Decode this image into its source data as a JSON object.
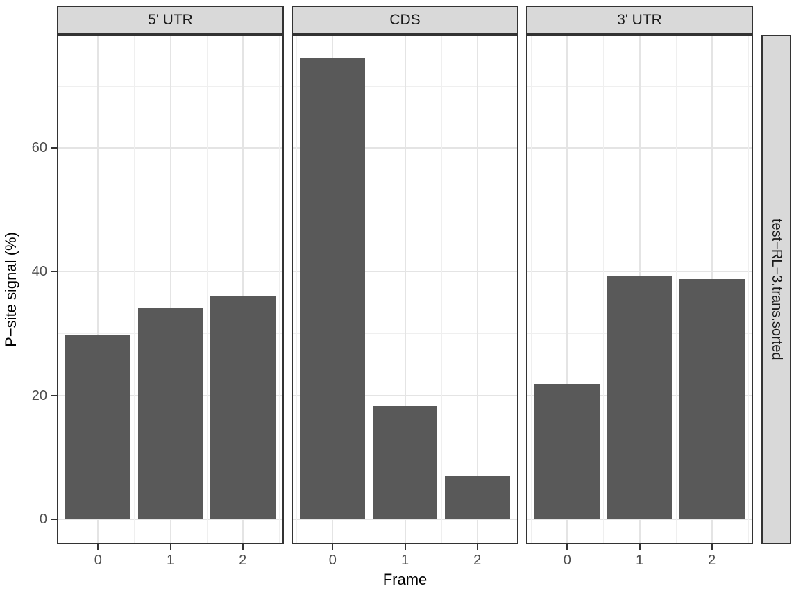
{
  "chart_data": {
    "type": "bar",
    "title": "",
    "xlabel": "Frame",
    "ylabel": "P−site signal (%)",
    "categories": [
      "0",
      "1",
      "2"
    ],
    "facets": [
      {
        "label": "5' UTR",
        "values": [
          29.8,
          34.2,
          36.0
        ]
      },
      {
        "label": "CDS",
        "values": [
          74.6,
          18.3,
          7.0
        ]
      },
      {
        "label": "3' UTR",
        "values": [
          21.9,
          39.3,
          38.8
        ]
      }
    ],
    "right_strip_label": "test−RL−3.trans.sorted",
    "y_ticks": [
      0,
      20,
      40,
      60
    ],
    "y_minor_gridlines": [
      10,
      30,
      50,
      70
    ],
    "ylim": [
      -3.7,
      78.3
    ],
    "grid": "major-and-minor",
    "legend": false,
    "colors": {
      "bar": "#595959",
      "strip_background": "#d9d9d9",
      "panel_border": "#333333",
      "grid_major": "#e4e4e4",
      "grid_minor": "#efefef",
      "tick_label": "#4d4d4d",
      "axis_title": "#000000"
    }
  }
}
